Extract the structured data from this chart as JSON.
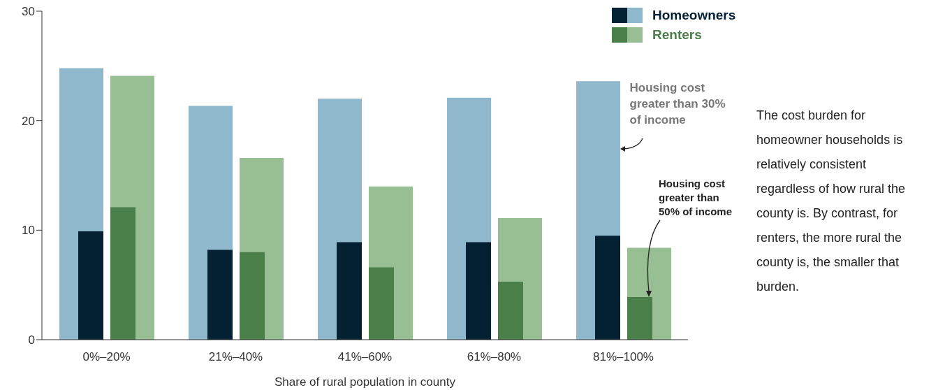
{
  "chart_data": {
    "type": "bar",
    "xlabel": "Share of rural population in county",
    "categories": [
      "0%–20%",
      "21%–40%",
      "41%–60%",
      "61%–80%",
      "81%–100%"
    ],
    "series": [
      {
        "name": "Homeowners",
        "color": "#8fb8cc",
        "values": [
          24.8,
          21.35,
          22.0,
          22.1,
          23.6
        ]
      },
      {
        "name": "Renters",
        "color": "#98be94",
        "values": [
          24.1,
          16.6,
          14.0,
          11.1,
          8.4
        ]
      },
      {
        "color": "#042133",
        "values": [
          9.9,
          8.2,
          8.9,
          8.9,
          9.5
        ]
      },
      {
        "color": "#4a7f4a",
        "values": [
          12.1,
          8.0,
          6.6,
          5.3,
          3.9
        ]
      }
    ],
    "ylim": [
      0,
      30
    ],
    "yticks": [
      0,
      10,
      20,
      30
    ],
    "grid": false,
    "legend": "top right",
    "annotations": [
      {
        "text": "Housing cost greater than 30% of income",
        "x": "81%–100%",
        "y": 17.4
      },
      "Housing cost greater than 50% of income",
      "The cost burden for homeowner households is relatively consistent regardless of how rural the county is. By contrast, for renters, the more rural the county is, the smaller that burden."
    ]
  }
}
